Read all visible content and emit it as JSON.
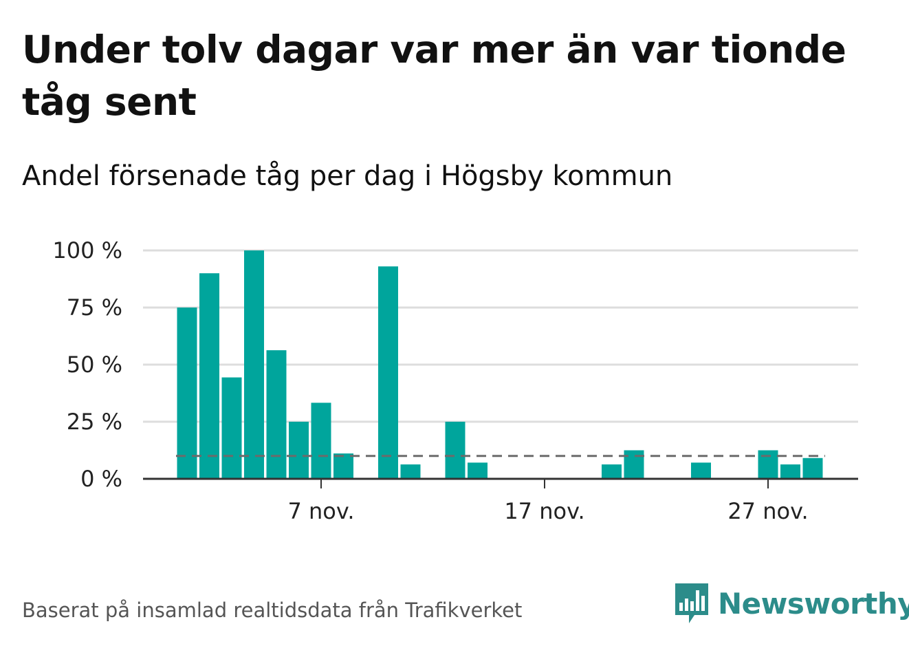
{
  "title": "Under tolv dagar var mer än var tionde tåg sent",
  "subtitle": "Andel försenade tåg per dag i Högsby kommun",
  "footer": {
    "source": "Baserat på insamlad realtidsdata från Trafikverket",
    "brand": "Newsworthy"
  },
  "colors": {
    "bar": "#00a59c",
    "reference_line": "#6b6b6b",
    "grid": "#dddddd",
    "axis": "#333333",
    "brand": "#2c8c8a"
  },
  "chart_data": {
    "type": "bar",
    "y_unit": "%",
    "ylim": [
      0,
      100
    ],
    "y_ticks": [
      0,
      25,
      50,
      75,
      100
    ],
    "y_tick_labels": [
      "0 %",
      "25 %",
      "50 %",
      "75 %",
      "100 %"
    ],
    "x_ticks": [
      "2023-11-07",
      "2023-11-17",
      "2023-11-27"
    ],
    "x_tick_labels": [
      "7 nov.",
      "17 nov.",
      "27 nov."
    ],
    "grid": true,
    "reference_line": 10,
    "dates": [
      "2023-11-01",
      "2023-11-02",
      "2023-11-03",
      "2023-11-04",
      "2023-11-05",
      "2023-11-06",
      "2023-11-07",
      "2023-11-08",
      "2023-11-09",
      "2023-11-10",
      "2023-11-11",
      "2023-11-12",
      "2023-11-13",
      "2023-11-14",
      "2023-11-15",
      "2023-11-16",
      "2023-11-17",
      "2023-11-18",
      "2023-11-19",
      "2023-11-20",
      "2023-11-21",
      "2023-11-22",
      "2023-11-23",
      "2023-11-24",
      "2023-11-25",
      "2023-11-26",
      "2023-11-27",
      "2023-11-28",
      "2023-11-29",
      "2023-11-30"
    ],
    "values": [
      75,
      90,
      44.4,
      100,
      56.3,
      25,
      33.3,
      11.1,
      0,
      93,
      6.3,
      0,
      25,
      7.1,
      0,
      0,
      0,
      0,
      0,
      6.3,
      12.5,
      0,
      0,
      7.1,
      0,
      0,
      12.5,
      6.3,
      9.1,
      0
    ]
  }
}
